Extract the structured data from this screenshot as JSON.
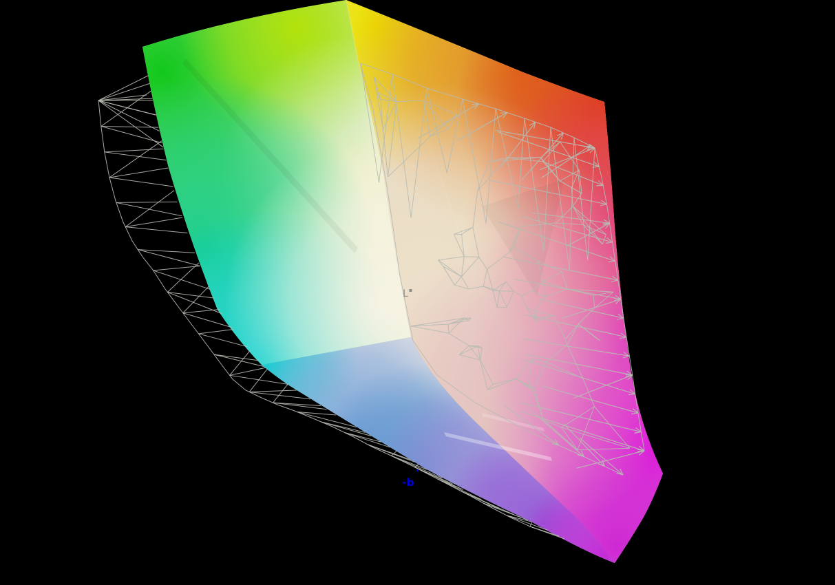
{
  "figure": {
    "background_color": "#000000",
    "wireframe_color": "#b7bbb2",
    "labels": {
      "lightness": {
        "text": "L",
        "marker": "▪",
        "color": "#8c8c8c"
      },
      "b_axis": {
        "text": "-b",
        "color": "#0000dd"
      }
    },
    "palette": {
      "left_base": "#eef0d4",
      "green": "#12c81c",
      "yellow_green": "#b9e300",
      "pale_yellow_green": "#eff0c9",
      "teal": "#14cd8e",
      "cyan": "#0bd1d1",
      "white_core": "#f7f3e3",
      "right_base": "#e7d7bd",
      "yellow": "#ece400",
      "orange": "#e0821a",
      "red": "#dd3f13",
      "crimson": "#e23b5e",
      "hot_pink": "#e23b98",
      "magenta": "#de16dc",
      "deep_magenta": "#cd25d4",
      "warm_wash": "#eee3cd",
      "pink_wash": "#dfa0bb",
      "bottom_base": "#d9dce8",
      "bottom_cyan": "#15ced2",
      "light_blue": "#7fa8d8",
      "steel_blue": "#5b93cf",
      "lavender": "#9d8ad8",
      "purple": "#9457d6",
      "bottom_magenta": "#c42bd6",
      "pale_bottom": "#e6e2e4"
    }
  },
  "chart_data": {
    "type": "3d-gamut-surface",
    "title": "",
    "axis_labels_visible": [
      "L*",
      "-b"
    ],
    "series": [
      {
        "name": "shaded color gamut solid",
        "style": "colored surface"
      },
      {
        "name": "reference gamut",
        "style": "gray wireframe with mapping arrows"
      }
    ],
    "legend_position": "none",
    "background": "black"
  }
}
